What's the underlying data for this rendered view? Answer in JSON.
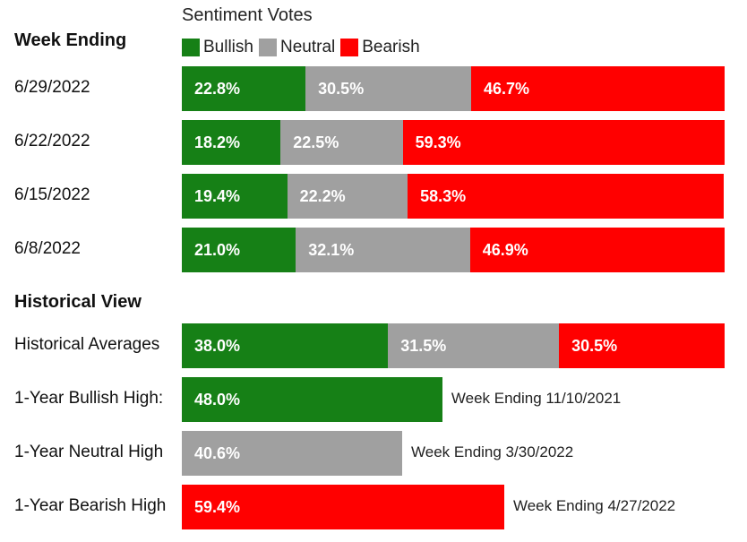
{
  "colors": {
    "bullish": "#168016",
    "neutral": "#a0a0a0",
    "bearish": "#ff0000"
  },
  "chart_data": {
    "type": "bar",
    "title": "Sentiment Votes",
    "legend": [
      {
        "name": "Bullish",
        "color_key": "bullish"
      },
      {
        "name": "Neutral",
        "color_key": "neutral"
      },
      {
        "name": "Bearish",
        "color_key": "bearish"
      }
    ],
    "weekly_heading": "Week Ending",
    "weeks": [
      {
        "label": "6/29/2022",
        "bullish": 22.8,
        "neutral": 30.5,
        "bearish": 46.7
      },
      {
        "label": "6/22/2022",
        "bullish": 18.2,
        "neutral": 22.5,
        "bearish": 59.3
      },
      {
        "label": "6/15/2022",
        "bullish": 19.4,
        "neutral": 22.2,
        "bearish": 58.3
      },
      {
        "label": "6/8/2022",
        "bullish": 21.0,
        "neutral": 32.1,
        "bearish": 46.9
      }
    ],
    "historical_heading": "Historical View",
    "historical_averages": {
      "label": "Historical Averages",
      "bullish": 38.0,
      "neutral": 31.5,
      "bearish": 30.5
    },
    "highs": [
      {
        "label": "1-Year Bullish High:",
        "value": 48.0,
        "color_key": "bullish",
        "note": "Week Ending 11/10/2021"
      },
      {
        "label": "1-Year Neutral High",
        "value": 40.6,
        "color_key": "neutral",
        "note": "Week Ending 3/30/2022"
      },
      {
        "label": "1-Year Bearish High",
        "value": 59.4,
        "color_key": "bearish",
        "note": "Week Ending 4/27/2022"
      }
    ]
  }
}
